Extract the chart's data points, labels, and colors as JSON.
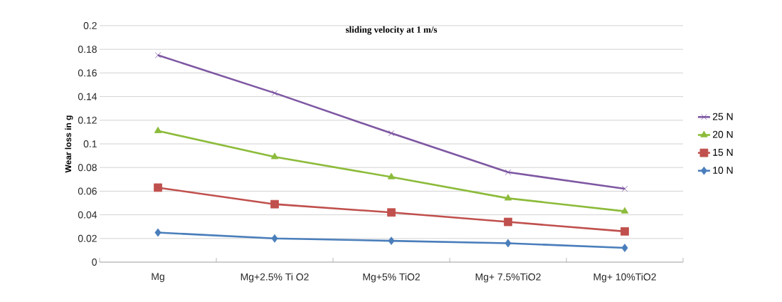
{
  "chart_data": {
    "type": "line",
    "title": "sliding velocity at 1 m/s",
    "ylabel": "Wear  loss in g",
    "categories": [
      "Mg",
      "Mg+2.5% Ti O2",
      "Mg+5% TiO2",
      "Mg+ 7.5%TiO2",
      "Mg+ 10%TiO2"
    ],
    "series": [
      {
        "name": "25 N",
        "color": "#7e57a2",
        "marker": "cross",
        "values": [
          0.175,
          0.143,
          0.109,
          0.076,
          0.062
        ]
      },
      {
        "name": "20 N",
        "color": "#8cbb3a",
        "marker": "triangle",
        "values": [
          0.111,
          0.089,
          0.072,
          0.054,
          0.043
        ]
      },
      {
        "name": "15 N",
        "color": "#c0504d",
        "marker": "square",
        "values": [
          0.063,
          0.049,
          0.042,
          0.034,
          0.026
        ]
      },
      {
        "name": "10 N",
        "color": "#4a7ebb",
        "marker": "diamond",
        "values": [
          0.025,
          0.02,
          0.018,
          0.016,
          0.012
        ]
      }
    ],
    "ylim": [
      0,
      0.2
    ],
    "yticks": [
      0,
      0.02,
      0.04,
      0.06,
      0.08,
      0.1,
      0.12,
      0.14,
      0.16,
      0.18,
      0.2
    ],
    "grid": "y",
    "legend": "right",
    "line_style": "solid"
  }
}
